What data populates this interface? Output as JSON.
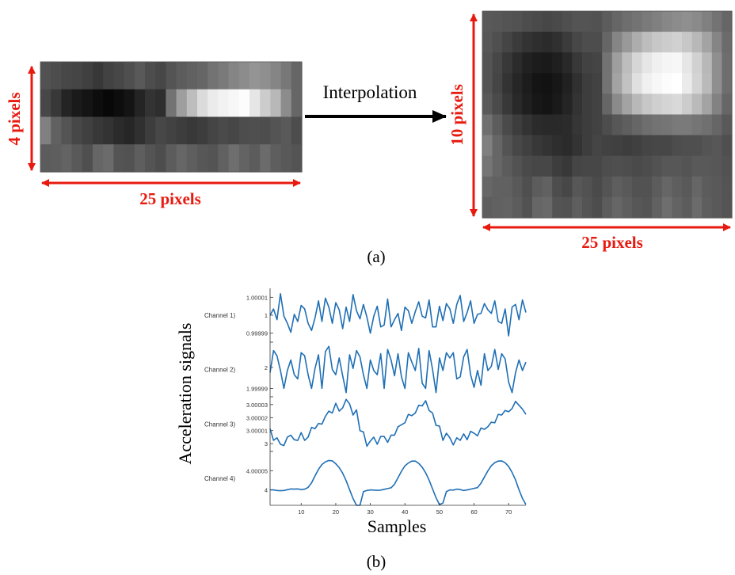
{
  "panel_a": {
    "caption": "(a)",
    "arrow_label": "Interpolation",
    "left_image": {
      "height_label": "4 pixels",
      "width_label": "25 pixels",
      "rows": [
        [
          0.32,
          0.3,
          0.28,
          0.27,
          0.25,
          0.22,
          0.26,
          0.28,
          0.31,
          0.35,
          0.3,
          0.28,
          0.33,
          0.36,
          0.38,
          0.4,
          0.45,
          0.48,
          0.52,
          0.55,
          0.58,
          0.56,
          0.52,
          0.47,
          0.4
        ],
        [
          0.28,
          0.22,
          0.14,
          0.1,
          0.08,
          0.05,
          0.03,
          0.05,
          0.08,
          0.14,
          0.2,
          0.18,
          0.45,
          0.62,
          0.74,
          0.86,
          0.92,
          0.95,
          0.97,
          0.99,
          0.9,
          0.8,
          0.72,
          0.55,
          0.4
        ],
        [
          0.5,
          0.38,
          0.33,
          0.28,
          0.25,
          0.22,
          0.2,
          0.17,
          0.15,
          0.19,
          0.24,
          0.28,
          0.26,
          0.24,
          0.22,
          0.24,
          0.27,
          0.29,
          0.28,
          0.3,
          0.31,
          0.3,
          0.33,
          0.35,
          0.3
        ],
        [
          0.36,
          0.37,
          0.39,
          0.35,
          0.31,
          0.4,
          0.42,
          0.33,
          0.32,
          0.37,
          0.33,
          0.3,
          0.36,
          0.4,
          0.37,
          0.34,
          0.33,
          0.38,
          0.43,
          0.39,
          0.36,
          0.42,
          0.37,
          0.35,
          0.33
        ]
      ]
    },
    "right_image": {
      "height_label": "10 pixels",
      "width_label": "25 pixels",
      "rows": [
        [
          0.35,
          0.34,
          0.33,
          0.32,
          0.3,
          0.29,
          0.28,
          0.29,
          0.31,
          0.33,
          0.33,
          0.32,
          0.36,
          0.4,
          0.43,
          0.45,
          0.48,
          0.5,
          0.53,
          0.55,
          0.56,
          0.54,
          0.5,
          0.45,
          0.4
        ],
        [
          0.34,
          0.31,
          0.27,
          0.23,
          0.2,
          0.18,
          0.17,
          0.19,
          0.23,
          0.28,
          0.3,
          0.3,
          0.4,
          0.52,
          0.6,
          0.68,
          0.74,
          0.78,
          0.8,
          0.82,
          0.78,
          0.72,
          0.64,
          0.52,
          0.42
        ],
        [
          0.33,
          0.28,
          0.22,
          0.17,
          0.13,
          0.11,
          0.1,
          0.12,
          0.16,
          0.22,
          0.26,
          0.27,
          0.45,
          0.62,
          0.74,
          0.84,
          0.9,
          0.94,
          0.96,
          0.97,
          0.9,
          0.82,
          0.72,
          0.56,
          0.43
        ],
        [
          0.33,
          0.27,
          0.2,
          0.15,
          0.11,
          0.08,
          0.07,
          0.09,
          0.13,
          0.19,
          0.24,
          0.26,
          0.45,
          0.64,
          0.76,
          0.88,
          0.94,
          0.97,
          0.99,
          1.0,
          0.92,
          0.83,
          0.73,
          0.56,
          0.43
        ],
        [
          0.35,
          0.29,
          0.22,
          0.16,
          0.12,
          0.09,
          0.08,
          0.1,
          0.14,
          0.2,
          0.24,
          0.26,
          0.4,
          0.54,
          0.64,
          0.72,
          0.78,
          0.81,
          0.83,
          0.85,
          0.8,
          0.73,
          0.64,
          0.51,
          0.4
        ],
        [
          0.44,
          0.36,
          0.29,
          0.24,
          0.2,
          0.17,
          0.16,
          0.16,
          0.17,
          0.21,
          0.24,
          0.26,
          0.3,
          0.34,
          0.37,
          0.4,
          0.43,
          0.45,
          0.46,
          0.48,
          0.48,
          0.46,
          0.44,
          0.4,
          0.35
        ],
        [
          0.5,
          0.4,
          0.33,
          0.28,
          0.25,
          0.22,
          0.2,
          0.18,
          0.17,
          0.2,
          0.24,
          0.27,
          0.26,
          0.25,
          0.24,
          0.25,
          0.27,
          0.28,
          0.28,
          0.3,
          0.31,
          0.31,
          0.33,
          0.34,
          0.31
        ],
        [
          0.46,
          0.4,
          0.36,
          0.32,
          0.29,
          0.28,
          0.28,
          0.24,
          0.22,
          0.27,
          0.28,
          0.28,
          0.3,
          0.31,
          0.3,
          0.29,
          0.3,
          0.32,
          0.34,
          0.34,
          0.33,
          0.35,
          0.35,
          0.34,
          0.32
        ],
        [
          0.4,
          0.38,
          0.38,
          0.35,
          0.31,
          0.36,
          0.38,
          0.3,
          0.28,
          0.34,
          0.32,
          0.29,
          0.33,
          0.37,
          0.35,
          0.32,
          0.32,
          0.36,
          0.4,
          0.37,
          0.35,
          0.4,
          0.36,
          0.35,
          0.33
        ],
        [
          0.37,
          0.38,
          0.39,
          0.36,
          0.32,
          0.4,
          0.41,
          0.33,
          0.32,
          0.37,
          0.33,
          0.3,
          0.36,
          0.4,
          0.37,
          0.34,
          0.33,
          0.38,
          0.43,
          0.39,
          0.36,
          0.42,
          0.37,
          0.35,
          0.33
        ]
      ]
    }
  },
  "panel_b": {
    "caption": "(b)",
    "chart_data": {
      "type": "line",
      "xlabel": "Samples",
      "ylabel": "Acceleration signals",
      "xlim": [
        1,
        75
      ],
      "x_ticks": [
        "10",
        "20",
        "30",
        "40",
        "50",
        "60",
        "70"
      ],
      "line_color": "#1f6fb5",
      "series": [
        {
          "name": "Channel 1)",
          "tick_labels": [
            "1.00001",
            "1",
            "0.99999"
          ],
          "tick_values": [
            1.00001,
            1.0,
            0.99999
          ],
          "ylim": [
            0.999985,
            1.000015
          ],
          "values": [
            1.0,
            1.0000035,
            0.9999975,
            1.000012,
            0.9999995,
            0.9999955,
            0.9999905,
            1.0000005,
            0.9999965,
            1.0000055,
            1.0000035,
            0.9999955,
            0.9999915,
            0.9999985,
            1.000008,
            0.9999965,
            1.0000095,
            1.0000045,
            0.9999955,
            1.000007,
            1.000003,
            0.9999925,
            1.0000045,
            0.9999965,
            1.0000115,
            1.0000025,
            0.999998,
            1.000006,
            0.999999,
            0.99999,
            0.9999995,
            1.000005,
            0.9999935,
            0.9999945,
            1.000009,
            0.9999935,
            0.9999975,
            1.000001,
            0.9999915,
            1.0000045,
            1.0000025,
            0.9999955,
            1.000002,
            1.0000075,
            0.9999995,
            0.9999985,
            1.0000085,
            0.9999935,
            0.9999935,
            1.000005,
            0.999997,
            1.0000065,
            1.0000035,
            0.9999955,
            1.000006,
            1.000011,
            0.9999965,
            1.0000015,
            1.000008,
            0.9999955,
            1.0000005,
            1.000001,
            1.0000065,
            1.000003,
            1.000001,
            1.000008,
            0.9999965,
            0.9999955,
            1.0000035,
            0.9999885,
            1.0000045,
            1.000006,
            0.9999975,
            1.0000085,
            1.0000015
          ]
        },
        {
          "name": "Channel 2)",
          "tick_labels": [
            "2",
            "1.99999"
          ],
          "tick_values": [
            2.0,
            1.99999
          ],
          "ylim": [
            1.999986,
            2.000012
          ],
          "values": [
            1.9999975,
            2.000008,
            2.0000055,
            1.9999985,
            1.99999,
            1.9999985,
            2.0000035,
            1.9999965,
            1.9999945,
            2.000007,
            2.0000055,
            1.9999965,
            1.99999,
            1.9999995,
            2.000006,
            1.99999,
            2.0000075,
            2.00001,
            1.999999,
            1.9999965,
            2.0000045,
            1.999996,
            1.999988,
            2.000006,
            1.9999995,
            2.000008,
            2.000005,
            1.9999965,
            1.99999,
            2.0000035,
            1.9999985,
            1.9999965,
            2.0000065,
            1.99999,
            2.0000085,
            2.0000035,
            1.999996,
            2.0000065,
            1.9999955,
            1.99999,
            2.000007,
            2.0000025,
            1.9999985,
            2.000009,
            1.9999925,
            1.99999,
            2.000008,
            1.999999,
            1.999988,
            2.0000045,
            1.9999985,
            2.000007,
            2.0000045,
            2.000007,
            1.9999945,
            1.9999955,
            2.000005,
            2.0000085,
            1.9999965,
            1.9999905,
            1.9999985,
            1.9999915,
            2.0000065,
            1.9999985,
            2.0000005,
            2.0000085,
            1.999999,
            2.0000065,
            2.000004,
            1.999993,
            1.999988,
            1.9999975,
            2.0000035,
            1.9999985,
            2.0000025
          ]
        },
        {
          "name": "Channel 3)",
          "tick_labels": [
            "3.00003",
            "3.00002",
            "3.00001",
            "3"
          ],
          "tick_values": [
            3.00003,
            3.00002,
            3.00001,
            3.0
          ],
          "ylim": [
            2.999994,
            3.000036
          ],
          "values": [
            3.0000115,
            3.0000025,
            3.0000045,
            2.9999995,
            2.9999985,
            3.000005,
            3.0000065,
            3.000003,
            3.0000025,
            3.0000085,
            3.0000025,
            3.000005,
            3.0000125,
            3.0000115,
            3.0000155,
            3.000015,
            3.000021,
            3.000025,
            3.0000235,
            3.000031,
            3.000025,
            3.0000275,
            3.000034,
            3.0000305,
            3.000022,
            3.000026,
            3.00001,
            3.000009,
            2.999998,
            3.000002,
            3.000005,
            2.9999995,
            3.0000055,
            3.0000055,
            3.000001,
            3.0000065,
            3.0000065,
            3.000013,
            3.0000145,
            3.000016,
            3.0000225,
            3.0000215,
            3.0000235,
            3.0000295,
            3.000029,
            3.000033,
            3.0000255,
            3.0000235,
            3.000014,
            3.0000135,
            3.0000025,
            3.000008,
            3.0000045,
            2.999999,
            3.0000045,
            3.0000025,
            3.0000075,
            3.000003,
            3.0000095,
            3.000008,
            3.000006,
            3.000012,
            3.000011,
            3.000013,
            3.0000165,
            3.000016,
            3.0000225,
            3.000022,
            3.0000255,
            3.0000245,
            3.000027,
            3.0000325,
            3.0000295,
            3.0000265,
            3.0000225
          ]
        },
        {
          "name": "Channel 4)",
          "tick_labels": [
            "4.00005",
            "4"
          ],
          "tick_values": [
            4.00005,
            4.0
          ],
          "ylim": [
            3.99996,
            4.0001
          ],
          "values": [
            4.0,
            4.0,
            3.9999985,
            3.999998,
            3.9999985,
            4.0000005,
            4.0000025,
            4.000002,
            4.0000025,
            4.000001,
            4.000002,
            4.0000065,
            4.0000185,
            4.0000365,
            4.0000535,
            4.000066,
            4.000073,
            4.0000765,
            4.0000755,
            4.000068,
            4.000058,
            4.0000435,
            4.000024,
            4.0000005,
            3.9999775,
            3.99996,
            3.99996,
            3.9999955,
            3.9999985,
            4.0,
            3.9999995,
            3.999999,
            3.9999995,
            4.0000015,
            4.0000035,
            4.0000055,
            4.000015,
            4.0000315,
            4.0000485,
            4.0000625,
            4.00007,
            4.000075,
            4.000075,
            4.000069,
            4.000059,
            4.0000445,
            4.0000255,
            4.0000025,
            3.99998,
            3.9999615,
            3.999966,
            3.9999955,
            4.0,
            3.9999995,
            4.000002,
            4.000001,
            3.9999985,
            4.0,
            4.000002,
            4.000004,
            4.000006,
            4.0000175,
            4.0000335,
            4.0000495,
            4.000063,
            4.000071,
            4.000075,
            4.0000755,
            4.0000705,
            4.000061,
            4.0000455,
            4.000026,
            4.0000005,
            3.999978,
            3.999962
          ]
        }
      ]
    }
  }
}
